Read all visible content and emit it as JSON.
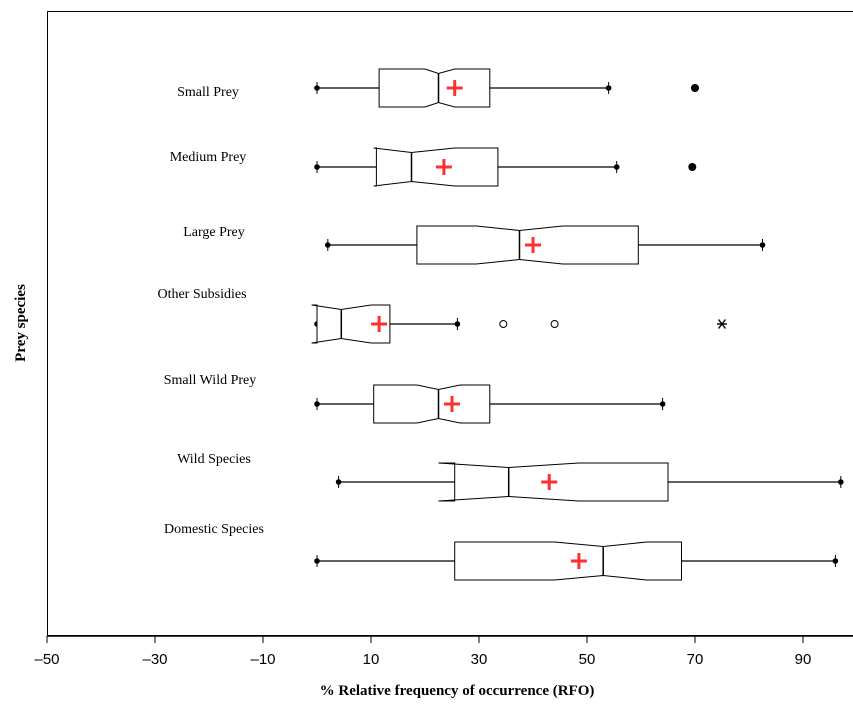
{
  "chart_data": {
    "type": "boxplot",
    "orientation": "horizontal",
    "xlabel": "% Relative frequency of occurrence (RFO)",
    "ylabel": "Prey species",
    "xlim": [
      -50,
      97
    ],
    "xticks": [
      -50,
      -30,
      -10,
      10,
      30,
      50,
      70,
      90
    ],
    "xtick_labels": [
      "–50",
      "–30",
      "–10",
      "10",
      "30",
      "50",
      "70",
      "90"
    ],
    "mean_color": "#ff3030",
    "box_color": "#000000",
    "categories": [
      {
        "label": "Small Prey",
        "whisker_low": 0,
        "q1": 11.5,
        "median": 22.5,
        "q3": 32,
        "whisker_high": 54,
        "mean": 25.5,
        "notch_low": 20,
        "notch_high": 25.5,
        "outliers": [
          {
            "value": 70,
            "marker": "filled"
          }
        ]
      },
      {
        "label": "Medium Prey",
        "whisker_low": 0,
        "q1": 11,
        "median": 17.5,
        "q3": 33.5,
        "whisker_high": 55.5,
        "mean": 23.5,
        "notch_low": 10.5,
        "notch_high": 25.5,
        "outliers": [
          {
            "value": 69.5,
            "marker": "filled"
          }
        ]
      },
      {
        "label": "Large Prey",
        "whisker_low": 2,
        "q1": 18.5,
        "median": 37.5,
        "q3": 59.5,
        "whisker_high": 82.5,
        "mean": 40,
        "notch_low": 29.5,
        "notch_high": 45.5,
        "outliers": []
      },
      {
        "label": "Other Subsidies",
        "whisker_low": 0,
        "q1": 0,
        "median": 4.5,
        "q3": 13.5,
        "whisker_high": 26,
        "mean": 11.5,
        "notch_low": -1,
        "notch_high": 10,
        "outliers": [
          {
            "value": 34.5,
            "marker": "open"
          },
          {
            "value": 44,
            "marker": "open"
          },
          {
            "value": 75,
            "marker": "star"
          }
        ]
      },
      {
        "label": "Small Wild Prey",
        "whisker_low": 0,
        "q1": 10.5,
        "median": 22.5,
        "q3": 32,
        "whisker_high": 64,
        "mean": 25,
        "notch_low": 18.5,
        "notch_high": 26.5,
        "outliers": []
      },
      {
        "label": "Wild Species",
        "whisker_low": 4,
        "q1": 25.5,
        "median": 35.5,
        "q3": 65,
        "whisker_high": 97,
        "mean": 43,
        "notch_low": 22.5,
        "notch_high": 48.5,
        "outliers": []
      },
      {
        "label": "Domestic Species",
        "whisker_low": 0,
        "q1": 25.5,
        "median": 53,
        "q3": 67.5,
        "whisker_high": 96,
        "mean": 48.5,
        "notch_low": 44,
        "notch_high": 61,
        "outliers": []
      }
    ]
  }
}
